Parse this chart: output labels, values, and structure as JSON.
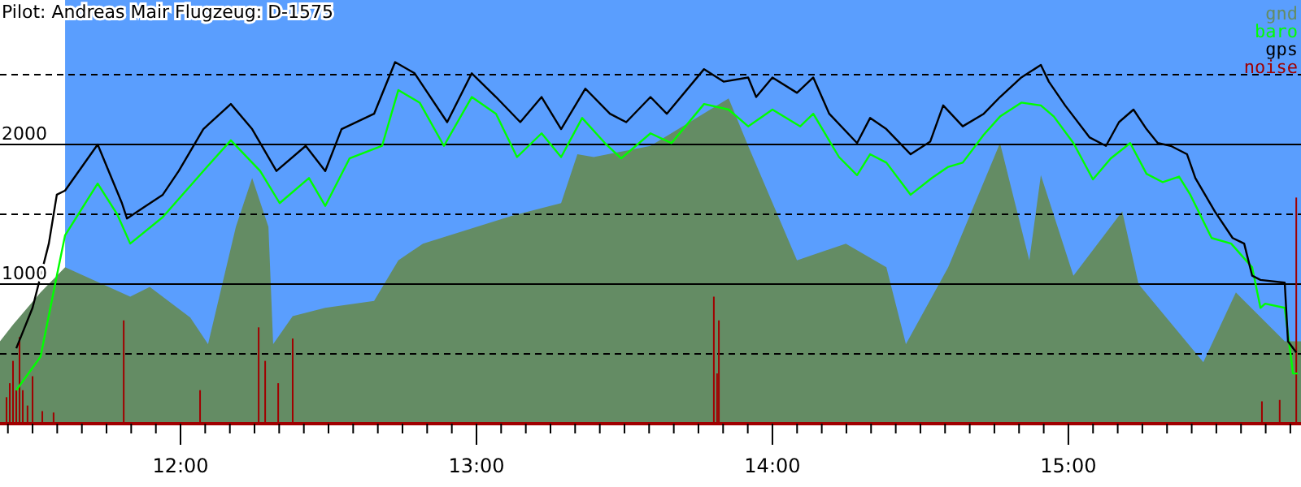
{
  "chart_data": {
    "type": "line",
    "title": "Pilot: Andreas Mair Flugzeug: D-1575",
    "xlim": [
      11.39,
      15.786
    ],
    "ylim": [
      0,
      3035
    ],
    "xticks": [
      {
        "value": 11.4167,
        "label": null
      },
      {
        "value": 11.5,
        "label": null
      },
      {
        "value": 11.5833,
        "label": null
      },
      {
        "value": 11.6667,
        "label": null
      },
      {
        "value": 11.75,
        "label": null
      },
      {
        "value": 11.8333,
        "label": null
      },
      {
        "value": 11.9167,
        "label": null
      },
      {
        "value": 12,
        "label": "12:00"
      },
      {
        "value": 12.0833,
        "label": null
      },
      {
        "value": 12.1667,
        "label": null
      },
      {
        "value": 12.25,
        "label": null
      },
      {
        "value": 12.3333,
        "label": null
      },
      {
        "value": 12.4167,
        "label": null
      },
      {
        "value": 12.5,
        "label": null
      },
      {
        "value": 12.5833,
        "label": null
      },
      {
        "value": 12.6667,
        "label": null
      },
      {
        "value": 12.75,
        "label": null
      },
      {
        "value": 12.8333,
        "label": null
      },
      {
        "value": 12.9167,
        "label": null
      },
      {
        "value": 13,
        "label": "13:00"
      },
      {
        "value": 13.0833,
        "label": null
      },
      {
        "value": 13.1667,
        "label": null
      },
      {
        "value": 13.25,
        "label": null
      },
      {
        "value": 13.3333,
        "label": null
      },
      {
        "value": 13.4167,
        "label": null
      },
      {
        "value": 13.5,
        "label": null
      },
      {
        "value": 13.5833,
        "label": null
      },
      {
        "value": 13.6667,
        "label": null
      },
      {
        "value": 13.75,
        "label": null
      },
      {
        "value": 13.8333,
        "label": null
      },
      {
        "value": 13.9167,
        "label": null
      },
      {
        "value": 14,
        "label": "14:00"
      },
      {
        "value": 14.0833,
        "label": null
      },
      {
        "value": 14.1667,
        "label": null
      },
      {
        "value": 14.25,
        "label": null
      },
      {
        "value": 14.3333,
        "label": null
      },
      {
        "value": 14.4167,
        "label": null
      },
      {
        "value": 14.5,
        "label": null
      },
      {
        "value": 14.5833,
        "label": null
      },
      {
        "value": 14.6667,
        "label": null
      },
      {
        "value": 14.75,
        "label": null
      },
      {
        "value": 14.8333,
        "label": null
      },
      {
        "value": 14.9167,
        "label": null
      },
      {
        "value": 15,
        "label": "15:00"
      },
      {
        "value": 15.0833,
        "label": null
      },
      {
        "value": 15.1667,
        "label": null
      },
      {
        "value": 15.25,
        "label": null
      },
      {
        "value": 15.3333,
        "label": null
      },
      {
        "value": 15.4167,
        "label": null
      },
      {
        "value": 15.5,
        "label": null
      },
      {
        "value": 15.5833,
        "label": null
      },
      {
        "value": 15.6667,
        "label": null
      },
      {
        "value": 15.75,
        "label": null
      }
    ],
    "yticks": [
      {
        "value": 500,
        "label": null
      },
      1000,
      {
        "value": 1500,
        "label": null
      },
      2000,
      {
        "value": 2500,
        "label": null
      }
    ],
    "grid": "y",
    "legend": "top right",
    "bands": [
      {
        "axis": "x",
        "from": 11.61,
        "to": 15.786,
        "color": "#5a9efe"
      }
    ],
    "series": [
      {
        "name": "gnd",
        "type": "area",
        "color": "#648c64",
        "x": [
          11.39,
          11.434,
          11.527,
          11.61,
          11.83,
          11.896,
          12.033,
          12.093,
          12.187,
          12.242,
          12.297,
          12.313,
          12.379,
          12.489,
          12.654,
          12.736,
          12.819,
          13.121,
          13.286,
          13.341,
          13.396,
          13.588,
          13.852,
          13.918,
          14.083,
          14.248,
          14.385,
          14.451,
          14.594,
          14.769,
          14.868,
          14.907,
          15.017,
          15.182,
          15.237,
          15.456,
          15.566,
          15.731,
          15.786
        ],
        "values": [
          590,
          710,
          940,
          1120,
          910,
          980,
          760,
          570,
          1410,
          1760,
          1410,
          570,
          770,
          830,
          880,
          1170,
          1290,
          1490,
          1580,
          1930,
          1910,
          1990,
          2330,
          1990,
          1170,
          1290,
          1120,
          570,
          1120,
          2010,
          1170,
          1780,
          1060,
          1520,
          1000,
          440,
          940,
          590,
          590
        ]
      },
      {
        "name": "baro",
        "color": "#00ff00",
        "x": [
          11.445,
          11.527,
          11.582,
          11.61,
          11.72,
          11.786,
          11.83,
          11.94,
          12.077,
          12.17,
          12.269,
          12.335,
          12.434,
          12.489,
          12.571,
          12.681,
          12.736,
          12.808,
          12.89,
          12.984,
          13.066,
          13.137,
          13.22,
          13.286,
          13.357,
          13.434,
          13.489,
          13.588,
          13.659,
          13.769,
          13.852,
          13.918,
          14.0,
          14.094,
          14.138,
          14.225,
          14.286,
          14.33,
          14.385,
          14.467,
          14.539,
          14.594,
          14.643,
          14.714,
          14.769,
          14.841,
          14.907,
          14.951,
          15.017,
          15.083,
          15.143,
          15.209,
          15.264,
          15.319,
          15.374,
          15.412,
          15.484,
          15.55,
          15.621,
          15.649,
          15.665,
          15.731,
          15.759,
          15.775
        ],
        "values": [
          240,
          480,
          1060,
          1350,
          1720,
          1500,
          1290,
          1480,
          1810,
          2030,
          1810,
          1580,
          1760,
          1560,
          1900,
          1990,
          2390,
          2300,
          1990,
          2340,
          2220,
          1910,
          2080,
          1910,
          2190,
          2010,
          1900,
          2080,
          2010,
          2290,
          2250,
          2130,
          2250,
          2130,
          2220,
          1910,
          1780,
          1930,
          1870,
          1640,
          1760,
          1840,
          1870,
          2070,
          2200,
          2300,
          2280,
          2200,
          2010,
          1750,
          1900,
          2010,
          1790,
          1730,
          1770,
          1640,
          1330,
          1290,
          1120,
          830,
          860,
          830,
          360,
          360
        ]
      },
      {
        "name": "gps",
        "color": "#000000",
        "x": [
          11.445,
          11.5,
          11.555,
          11.582,
          11.61,
          11.72,
          11.802,
          11.819,
          11.94,
          11.994,
          12.077,
          12.17,
          12.242,
          12.324,
          12.423,
          12.489,
          12.544,
          12.654,
          12.725,
          12.791,
          12.901,
          12.984,
          13.066,
          13.148,
          13.22,
          13.286,
          13.368,
          13.451,
          13.506,
          13.588,
          13.643,
          13.769,
          13.835,
          13.918,
          13.945,
          14.0,
          14.083,
          14.138,
          14.192,
          14.286,
          14.33,
          14.385,
          14.467,
          14.533,
          14.577,
          14.643,
          14.714,
          14.769,
          14.841,
          14.907,
          14.934,
          14.989,
          15.072,
          15.127,
          15.171,
          15.22,
          15.264,
          15.302,
          15.346,
          15.401,
          15.429,
          15.495,
          15.555,
          15.594,
          15.621,
          15.649,
          15.731,
          15.742,
          15.77
        ],
        "values": [
          540,
          830,
          1290,
          1640,
          1670,
          2000,
          1580,
          1470,
          1640,
          1810,
          2110,
          2290,
          2110,
          1810,
          1990,
          1810,
          2110,
          2220,
          2590,
          2510,
          2160,
          2510,
          2340,
          2160,
          2340,
          2110,
          2400,
          2220,
          2160,
          2340,
          2220,
          2540,
          2450,
          2480,
          2340,
          2480,
          2370,
          2480,
          2220,
          2010,
          2190,
          2110,
          1930,
          2020,
          2280,
          2130,
          2220,
          2340,
          2480,
          2570,
          2450,
          2280,
          2050,
          1990,
          2160,
          2250,
          2110,
          2010,
          1990,
          1930,
          1760,
          1520,
          1330,
          1290,
          1060,
          1030,
          1010,
          590,
          510
        ]
      },
      {
        "name": "noise",
        "type": "bar",
        "color": "#a00000",
        "x": [
          11.412,
          11.423,
          11.434,
          11.445,
          11.456,
          11.467,
          11.483,
          11.5,
          11.533,
          11.571,
          11.808,
          12.066,
          12.264,
          12.286,
          12.33,
          12.379,
          13.802,
          13.813,
          13.819,
          15.654,
          15.714,
          15.77
        ],
        "values": [
          190,
          290,
          450,
          240,
          620,
          240,
          130,
          340,
          90,
          80,
          740,
          240,
          690,
          450,
          290,
          610,
          910,
          360,
          740,
          160,
          170,
          1620
        ]
      }
    ]
  }
}
